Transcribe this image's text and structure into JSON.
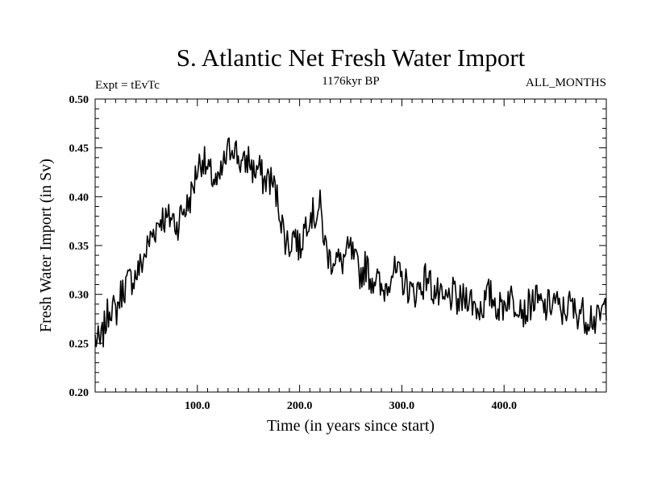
{
  "chart_data": {
    "type": "line",
    "title": "S. Atlantic Net Fresh Water Import",
    "subtitle_left": "Expt = tEvTc",
    "subtitle_center": "1176kyr BP",
    "subtitle_right": "ALL_MONTHS",
    "xlabel": "Time (in years since start)",
    "ylabel": "Fresh Water Import (in Sv)",
    "xlim": [
      0,
      500
    ],
    "ylim": [
      0.2,
      0.5
    ],
    "xticks": [
      100,
      200,
      300,
      400
    ],
    "xtick_labels": [
      "100.0",
      "200.0",
      "300.0",
      "400.0"
    ],
    "yticks": [
      0.2,
      0.25,
      0.3,
      0.35,
      0.4,
      0.45,
      0.5
    ],
    "ytick_labels": [
      "0.20",
      "0.25",
      "0.30",
      "0.35",
      "0.40",
      "0.45",
      "0.50"
    ],
    "grid": false,
    "series": [
      {
        "name": "fresh water import",
        "x": [
          0,
          5,
          10,
          15,
          20,
          25,
          30,
          35,
          40,
          45,
          50,
          55,
          60,
          65,
          70,
          75,
          80,
          85,
          90,
          95,
          100,
          105,
          110,
          115,
          120,
          125,
          130,
          135,
          140,
          145,
          150,
          155,
          160,
          165,
          170,
          175,
          180,
          185,
          190,
          195,
          200,
          205,
          210,
          215,
          220,
          225,
          230,
          235,
          240,
          245,
          250,
          255,
          260,
          265,
          270,
          275,
          280,
          285,
          290,
          295,
          300,
          305,
          310,
          315,
          320,
          325,
          330,
          335,
          340,
          345,
          350,
          355,
          360,
          365,
          370,
          375,
          380,
          385,
          390,
          395,
          400,
          405,
          410,
          415,
          420,
          425,
          430,
          435,
          440,
          445,
          450,
          455,
          460,
          465,
          470,
          475,
          480,
          485,
          490,
          495,
          500
        ],
        "values": [
          0.255,
          0.248,
          0.27,
          0.29,
          0.28,
          0.3,
          0.31,
          0.315,
          0.32,
          0.33,
          0.345,
          0.36,
          0.37,
          0.38,
          0.375,
          0.38,
          0.37,
          0.385,
          0.39,
          0.405,
          0.43,
          0.44,
          0.425,
          0.42,
          0.41,
          0.43,
          0.445,
          0.455,
          0.44,
          0.43,
          0.44,
          0.425,
          0.43,
          0.415,
          0.42,
          0.41,
          0.39,
          0.36,
          0.35,
          0.365,
          0.345,
          0.37,
          0.385,
          0.38,
          0.39,
          0.35,
          0.335,
          0.34,
          0.33,
          0.34,
          0.345,
          0.33,
          0.32,
          0.33,
          0.315,
          0.32,
          0.3,
          0.31,
          0.325,
          0.32,
          0.315,
          0.31,
          0.3,
          0.305,
          0.31,
          0.32,
          0.305,
          0.3,
          0.29,
          0.295,
          0.3,
          0.29,
          0.295,
          0.3,
          0.29,
          0.285,
          0.29,
          0.3,
          0.295,
          0.285,
          0.29,
          0.3,
          0.29,
          0.295,
          0.28,
          0.29,
          0.295,
          0.29,
          0.285,
          0.29,
          0.295,
          0.28,
          0.285,
          0.29,
          0.28,
          0.285,
          0.275,
          0.28,
          0.27,
          0.28,
          0.29
        ]
      }
    ]
  }
}
